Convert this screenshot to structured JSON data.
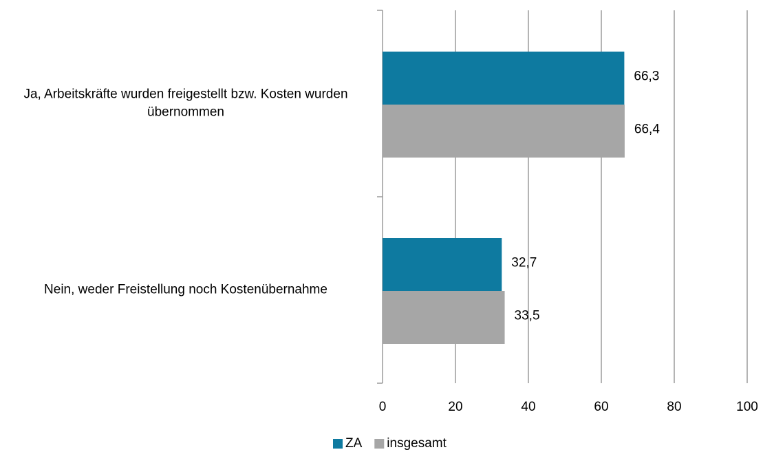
{
  "chart_data": {
    "type": "barh",
    "categories": [
      "Ja, Arbeitskräfte wurden freigestellt bzw. Kosten wurden übernommen",
      "Nein, weder Freistellung noch Kostenübernahme"
    ],
    "series": [
      {
        "name": "ZA",
        "color": "#0e7aa0",
        "values": [
          66.3,
          32.7
        ],
        "value_labels": [
          "66,3",
          "32,7"
        ]
      },
      {
        "name": "insgesamt",
        "color": "#a6a6a6",
        "values": [
          66.4,
          33.5
        ],
        "value_labels": [
          "66,4",
          "33,5"
        ]
      }
    ],
    "xlim": [
      0,
      100
    ],
    "xticks": [
      0,
      20,
      40,
      60,
      80,
      100
    ],
    "grid": true,
    "legend": "bottom"
  }
}
